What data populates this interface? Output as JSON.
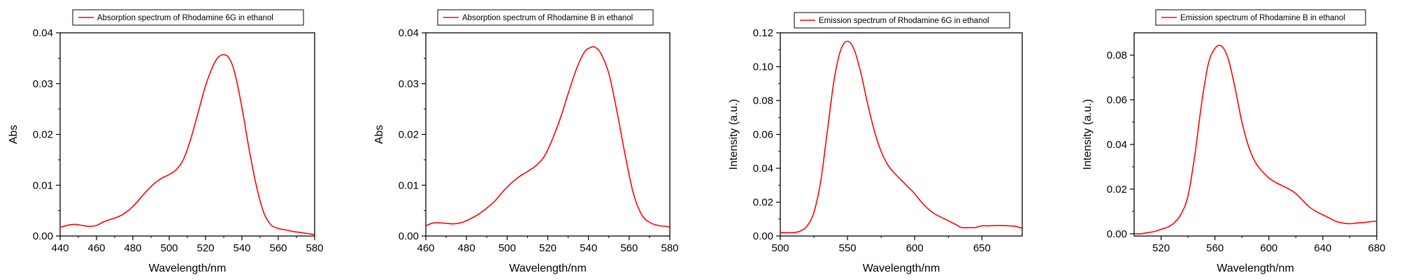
{
  "chart_data": [
    {
      "type": "line",
      "xlabel": "Wavelength/nm",
      "ylabel": "Abs",
      "xlim": [
        440,
        580
      ],
      "ylim": [
        0,
        0.04
      ],
      "xticks": [
        "440",
        "460",
        "480",
        "500",
        "520",
        "540",
        "560",
        "580"
      ],
      "yticks": [
        "0.00",
        "0.01",
        "0.02",
        "0.03",
        "0.04"
      ],
      "grid": false,
      "legend_position": "top-center",
      "series": [
        {
          "name": "Absorption spectrum of Rhodamine 6G in ethanol",
          "color": "#ff0000",
          "x": [
            440,
            444,
            448,
            452,
            456,
            460,
            464,
            468,
            472,
            476,
            480,
            484,
            488,
            492,
            496,
            500,
            504,
            508,
            512,
            516,
            520,
            524,
            527,
            530,
            533,
            536,
            540,
            544,
            548,
            552,
            556,
            560,
            564,
            568,
            572,
            576,
            580
          ],
          "y": [
            0.0017,
            0.0021,
            0.0023,
            0.0021,
            0.0019,
            0.0021,
            0.0028,
            0.0033,
            0.0038,
            0.0046,
            0.0058,
            0.0074,
            0.009,
            0.0104,
            0.0114,
            0.0121,
            0.0131,
            0.0152,
            0.0193,
            0.0244,
            0.0296,
            0.0334,
            0.0352,
            0.0357,
            0.035,
            0.0322,
            0.0253,
            0.017,
            0.0098,
            0.0046,
            0.0022,
            0.0015,
            0.0012,
            0.0009,
            0.0007,
            0.0005,
            0.0003
          ]
        }
      ]
    },
    {
      "type": "line",
      "xlabel": "Wavelength/nm",
      "ylabel": "Abs",
      "xlim": [
        460,
        580
      ],
      "ylim": [
        0,
        0.04
      ],
      "xticks": [
        "460",
        "480",
        "500",
        "520",
        "540",
        "560",
        "580"
      ],
      "yticks": [
        "0.00",
        "0.01",
        "0.02",
        "0.03",
        "0.04"
      ],
      "grid": false,
      "legend_position": "top-center",
      "series": [
        {
          "name": "Absorption spectrum of Rhodamine B in ethanol",
          "color": "#ff0000",
          "x": [
            460,
            463,
            466,
            470,
            474,
            478,
            482,
            486,
            490,
            494,
            498,
            502,
            506,
            510,
            514,
            518,
            522,
            526,
            530,
            534,
            538,
            541,
            543,
            546,
            550,
            554,
            558,
            562,
            566,
            570,
            574,
            578,
            580
          ],
          "y": [
            0.002,
            0.0025,
            0.0026,
            0.0025,
            0.0024,
            0.0027,
            0.0034,
            0.0043,
            0.0055,
            0.0069,
            0.0088,
            0.0104,
            0.0117,
            0.0127,
            0.0138,
            0.0155,
            0.0188,
            0.023,
            0.028,
            0.0328,
            0.0362,
            0.0371,
            0.0372,
            0.036,
            0.032,
            0.0245,
            0.016,
            0.0085,
            0.0043,
            0.0027,
            0.0021,
            0.0019,
            0.0018
          ]
        }
      ]
    },
    {
      "type": "line",
      "xlabel": "Wavelength/nm",
      "ylabel": "Intensity (a.u.)",
      "xlim": [
        500,
        680
      ],
      "ylim": [
        0,
        0.12
      ],
      "xticks": [
        "500",
        "550",
        "600",
        "650"
      ],
      "yticks": [
        "0.00",
        "0.02",
        "0.04",
        "0.06",
        "0.08",
        "0.10",
        "0.12"
      ],
      "grid": false,
      "legend_position": "top-center",
      "series": [
        {
          "name": "Emission spectrum of Rhodamine 6G in ethanol",
          "color": "#ff0000",
          "x": [
            500,
            505,
            510,
            515,
            520,
            525,
            530,
            535,
            540,
            545,
            550,
            555,
            560,
            565,
            570,
            575,
            580,
            585,
            590,
            595,
            600,
            605,
            610,
            615,
            620,
            625,
            630,
            635,
            640,
            645,
            650,
            655,
            660,
            665,
            670,
            675,
            680
          ],
          "y": [
            0.002,
            0.002,
            0.002,
            0.003,
            0.006,
            0.014,
            0.032,
            0.062,
            0.092,
            0.11,
            0.115,
            0.11,
            0.096,
            0.078,
            0.062,
            0.05,
            0.042,
            0.037,
            0.033,
            0.029,
            0.025,
            0.02,
            0.016,
            0.013,
            0.011,
            0.009,
            0.007,
            0.005,
            0.005,
            0.005,
            0.006,
            0.006,
            0.0062,
            0.0062,
            0.006,
            0.0057,
            0.0045
          ]
        }
      ]
    },
    {
      "type": "line",
      "xlabel": "Wavelength/nm",
      "ylabel": "Intensity (a.u.)",
      "xlim": [
        500,
        680
      ],
      "ylim": [
        -0.001,
        0.09
      ],
      "xticks": [
        "520",
        "560",
        "600",
        "640",
        "680"
      ],
      "xtick_values": [
        520,
        560,
        600,
        640,
        680
      ],
      "yticks": [
        "0.00",
        "0.02",
        "0.04",
        "0.06",
        "0.08"
      ],
      "grid": false,
      "legend_position": "top-center",
      "series": [
        {
          "name": "Emission spectrum of Rhodamine B in ethanol",
          "color": "#ff0000",
          "x": [
            500,
            505,
            510,
            515,
            520,
            525,
            530,
            535,
            540,
            545,
            550,
            555,
            560,
            565,
            570,
            575,
            580,
            585,
            590,
            595,
            600,
            605,
            610,
            615,
            620,
            625,
            630,
            635,
            640,
            645,
            650,
            655,
            660,
            665,
            670,
            675,
            680
          ],
          "y": [
            0.0,
            0.0,
            0.0005,
            0.001,
            0.002,
            0.003,
            0.005,
            0.009,
            0.017,
            0.035,
            0.058,
            0.076,
            0.083,
            0.084,
            0.078,
            0.065,
            0.05,
            0.039,
            0.032,
            0.028,
            0.025,
            0.023,
            0.0215,
            0.02,
            0.018,
            0.015,
            0.012,
            0.01,
            0.0085,
            0.007,
            0.0055,
            0.0048,
            0.0045,
            0.0048,
            0.005,
            0.0054,
            0.0056
          ]
        }
      ]
    }
  ]
}
